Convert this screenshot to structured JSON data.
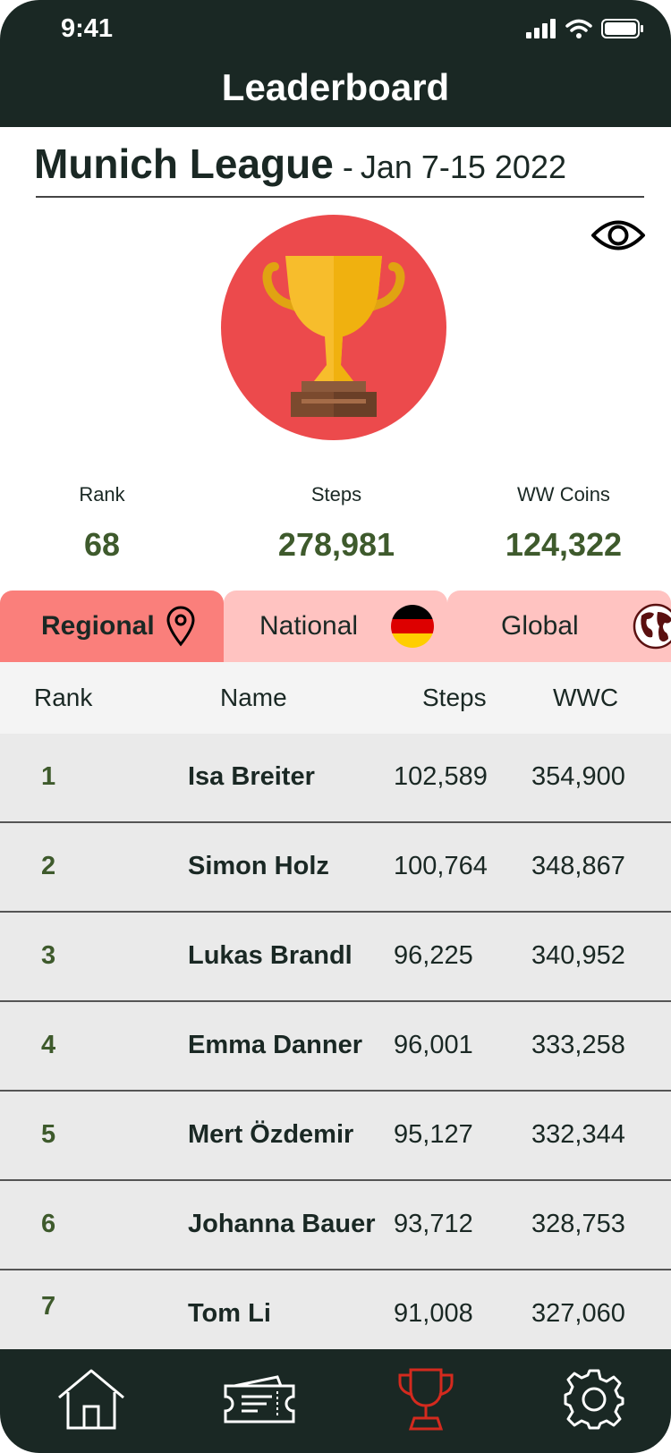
{
  "status_bar": {
    "time": "9:41"
  },
  "header": {
    "title": "Leaderboard"
  },
  "league": {
    "name": "Munich League",
    "separator": "-",
    "dates": "Jan 7-15 2022"
  },
  "stats": [
    {
      "label": "Rank",
      "value": "68"
    },
    {
      "label": "Steps",
      "value": "278,981"
    },
    {
      "label": "WW Coins",
      "value": "124,322"
    }
  ],
  "tabs": [
    {
      "label": "Regional",
      "icon": "location-pin-icon",
      "active": true
    },
    {
      "label": "National",
      "icon": "germany-flag-icon",
      "active": false
    },
    {
      "label": "Global",
      "icon": "globe-icon",
      "active": false
    }
  ],
  "table": {
    "columns": [
      "Rank",
      "Name",
      "Steps",
      "WWC"
    ],
    "rows": [
      {
        "rank": "1",
        "name": "Isa Breiter",
        "steps": "102,589",
        "wwc": "354,900"
      },
      {
        "rank": "2",
        "name": "Simon Holz",
        "steps": "100,764",
        "wwc": "348,867"
      },
      {
        "rank": "3",
        "name": "Lukas Brandl",
        "steps": "96,225",
        "wwc": "340,952"
      },
      {
        "rank": "4",
        "name": "Emma Danner",
        "steps": "96,001",
        "wwc": "333,258"
      },
      {
        "rank": "5",
        "name": "Mert Özdemir",
        "steps": "95,127",
        "wwc": "332,344"
      },
      {
        "rank": "6",
        "name": "Johanna Bauer",
        "steps": "93,712",
        "wwc": "328,753"
      },
      {
        "rank": "7",
        "name": "Tom Li",
        "steps": "91,008",
        "wwc": "327,060"
      }
    ]
  },
  "bottom_nav": [
    {
      "icon": "home-icon",
      "active": false
    },
    {
      "icon": "ticket-icon",
      "active": false
    },
    {
      "icon": "trophy-icon",
      "active": true
    },
    {
      "icon": "gear-icon",
      "active": false
    }
  ],
  "colors": {
    "header_bg": "#1a2824",
    "accent_green": "#3e5a2c",
    "tab_active": "#fa7f7b",
    "tab_inactive": "#ffc3c1",
    "trophy_circle": "#ec4a4c",
    "nav_active": "#d42a1e"
  }
}
